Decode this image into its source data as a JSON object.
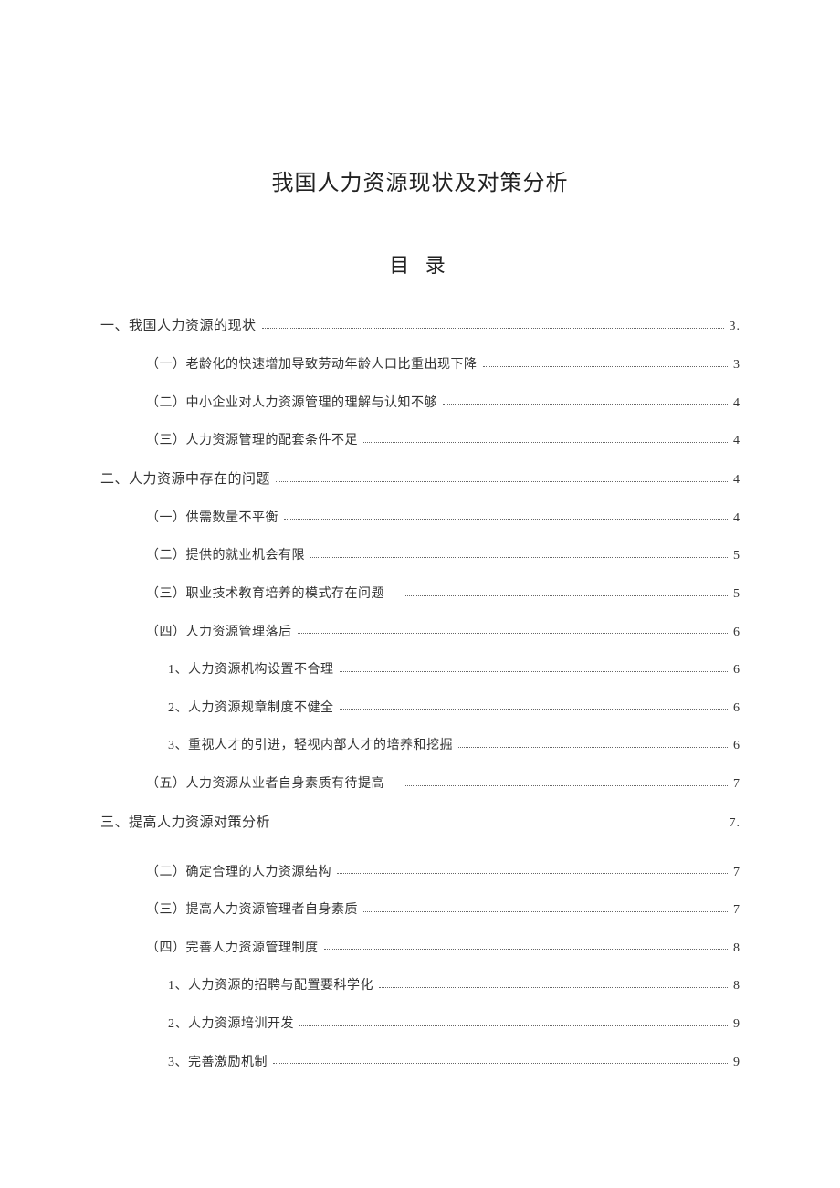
{
  "colors": {
    "background": "#ffffff",
    "text": "#333333",
    "title": "#222222",
    "leader": "#666666"
  },
  "typography": {
    "doc_title_fontsize": 24,
    "toc_title_fontsize": 22,
    "entry_fontsize": 14,
    "font_family": "SimSun"
  },
  "doc_title": "我国人力资源现状及对策分析",
  "toc_title": "目 录",
  "toc": [
    {
      "level": 1,
      "label": "一、我国人力资源的现状",
      "page": "3",
      "dot_after": true
    },
    {
      "level": 2,
      "label": "（一）老龄化的快速增加导致劳动年龄人口比重出现下降",
      "page": "3"
    },
    {
      "level": 2,
      "label": "（二）中小企业对人力资源管理的理解与认知不够",
      "page": "4"
    },
    {
      "level": 2,
      "label": "（三）人力资源管理的配套条件不足",
      "page": "4"
    },
    {
      "level": 1,
      "label": "二、人力资源中存在的问题",
      "page": "4"
    },
    {
      "level": 2,
      "label": "（一）供需数量不平衡",
      "page": "4"
    },
    {
      "level": 2,
      "label": "（二）提供的就业机会有限",
      "page": "5"
    },
    {
      "level": 2,
      "label": "（三）职业技术教育培养的模式存在问题 ",
      "page": "5"
    },
    {
      "level": 2,
      "label": "（四）人力资源管理落后",
      "page": "6"
    },
    {
      "level": 3,
      "label": "1、人力资源机构设置不合理",
      "page": "6"
    },
    {
      "level": 3,
      "label": "2、人力资源规章制度不健全",
      "page": "6"
    },
    {
      "level": 3,
      "label": "3、重视人才的引进，轻视内部人才的培养和挖掘",
      "page": "6"
    },
    {
      "level": 2,
      "label": "（五）人力资源从业者自身素质有待提高 ",
      "page": "7"
    },
    {
      "level": 1,
      "label": "三、提高人力资源对策分析",
      "page": "7",
      "dot_after": true,
      "extra_gap": true
    },
    {
      "level": 2,
      "label": "（二）确定合理的人力资源结构",
      "page": "7"
    },
    {
      "level": 2,
      "label": "（三）提高人力资源管理者自身素质",
      "page": "7"
    },
    {
      "level": 2,
      "label": "（四）完善人力资源管理制度",
      "page": "8"
    },
    {
      "level": 3,
      "label": "1、人力资源的招聘与配置要科学化",
      "page": "8"
    },
    {
      "level": 3,
      "label": "2、人力资源培训开发",
      "page": "9"
    },
    {
      "level": 3,
      "label": "3、完善激励机制",
      "page": "9"
    }
  ]
}
